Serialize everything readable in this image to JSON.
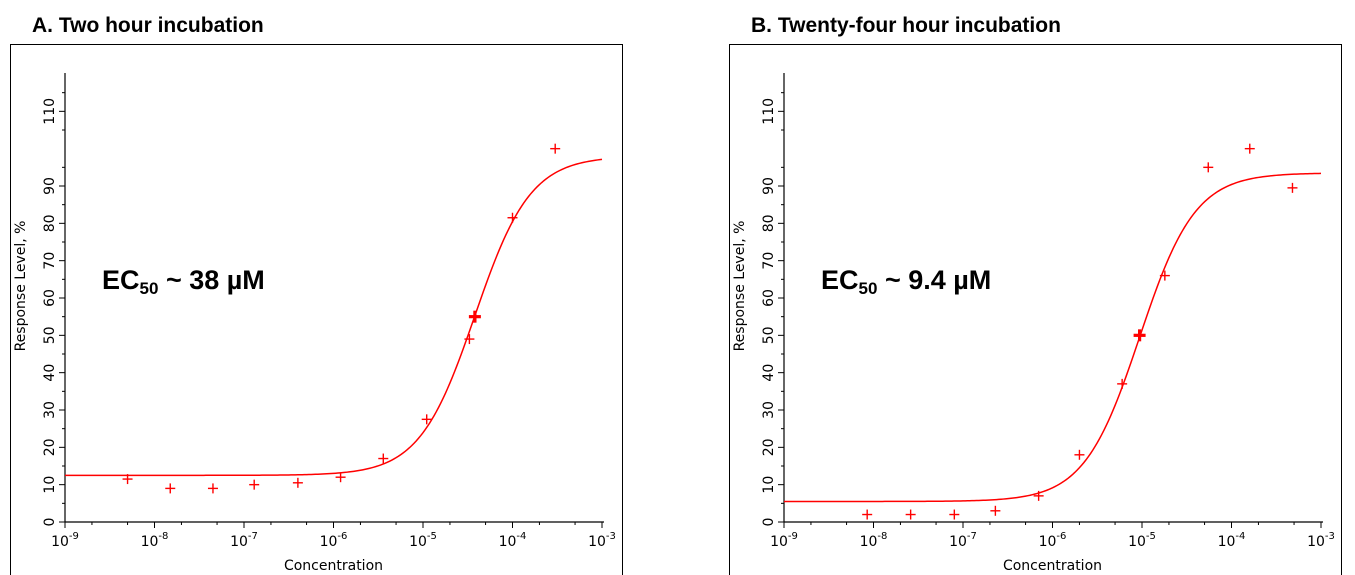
{
  "chart_data": [
    {
      "type": "scatter",
      "title": "A. Two hour incubation",
      "xlabel": "Concentration",
      "ylabel": "Response Level, %",
      "xscale": "log",
      "xlim": [
        1e-09,
        0.001
      ],
      "ylim": [
        0,
        120
      ],
      "x_ticks": [
        {
          "base": "10",
          "exp": "-9"
        },
        {
          "base": "10",
          "exp": "-8"
        },
        {
          "base": "10",
          "exp": "-7"
        },
        {
          "base": "10",
          "exp": "-6"
        },
        {
          "base": "10",
          "exp": "-5"
        },
        {
          "base": "10",
          "exp": "-4"
        },
        {
          "base": "10",
          "exp": "-3"
        }
      ],
      "y_ticks": [
        "0",
        "10",
        "20",
        "30",
        "40",
        "50",
        "60",
        "70",
        "80",
        "90",
        "110"
      ],
      "annotation": {
        "prefix": "EC",
        "sub": "50",
        "suffix": " ~ 38 µM"
      },
      "points": {
        "x": [
          5e-09,
          1.5e-08,
          4.5e-08,
          1.3e-07,
          4e-07,
          1.2e-06,
          3.6e-06,
          1.1e-05,
          3.3e-05,
          0.0001,
          0.0003
        ],
        "y": [
          11.5,
          9,
          9,
          10,
          10.5,
          12,
          17,
          27.5,
          49,
          81.5,
          100
        ]
      },
      "ec50_point": {
        "x": 3.8e-05,
        "y": 55
      },
      "fit": {
        "bottom": 12.5,
        "top": 98,
        "ec50": 3.8e-05,
        "hill": 1.4
      }
    },
    {
      "type": "scatter",
      "title": "B. Twenty-four hour incubation",
      "xlabel": "Concentration",
      "ylabel": "Response Level, %",
      "xscale": "log",
      "xlim": [
        1e-09,
        0.001
      ],
      "ylim": [
        0,
        120
      ],
      "x_ticks": [
        {
          "base": "10",
          "exp": "-9"
        },
        {
          "base": "10",
          "exp": "-8"
        },
        {
          "base": "10",
          "exp": "-7"
        },
        {
          "base": "10",
          "exp": "-6"
        },
        {
          "base": "10",
          "exp": "-5"
        },
        {
          "base": "10",
          "exp": "-4"
        },
        {
          "base": "10",
          "exp": "-3"
        }
      ],
      "y_ticks": [
        "0",
        "10",
        "20",
        "30",
        "40",
        "50",
        "60",
        "70",
        "80",
        "90",
        "110"
      ],
      "annotation": {
        "prefix": "EC",
        "sub": "50",
        "suffix": " ~ 9.4 µM"
      },
      "points": {
        "x": [
          8.5e-09,
          2.6e-08,
          8e-08,
          2.3e-07,
          7e-07,
          2e-06,
          6e-06,
          1.8e-05,
          5.5e-05,
          0.00016,
          0.00048
        ],
        "y": [
          2,
          2,
          2,
          3,
          7,
          18,
          37,
          66,
          95,
          100,
          89.5
        ]
      },
      "ec50_point": {
        "x": 9.4e-06,
        "y": 50
      },
      "fit": {
        "bottom": 5.5,
        "top": 93.5,
        "ec50": 9.4e-06,
        "hill": 1.4
      }
    }
  ],
  "colors": {
    "series": "#ff0000",
    "axes": "#000000"
  }
}
